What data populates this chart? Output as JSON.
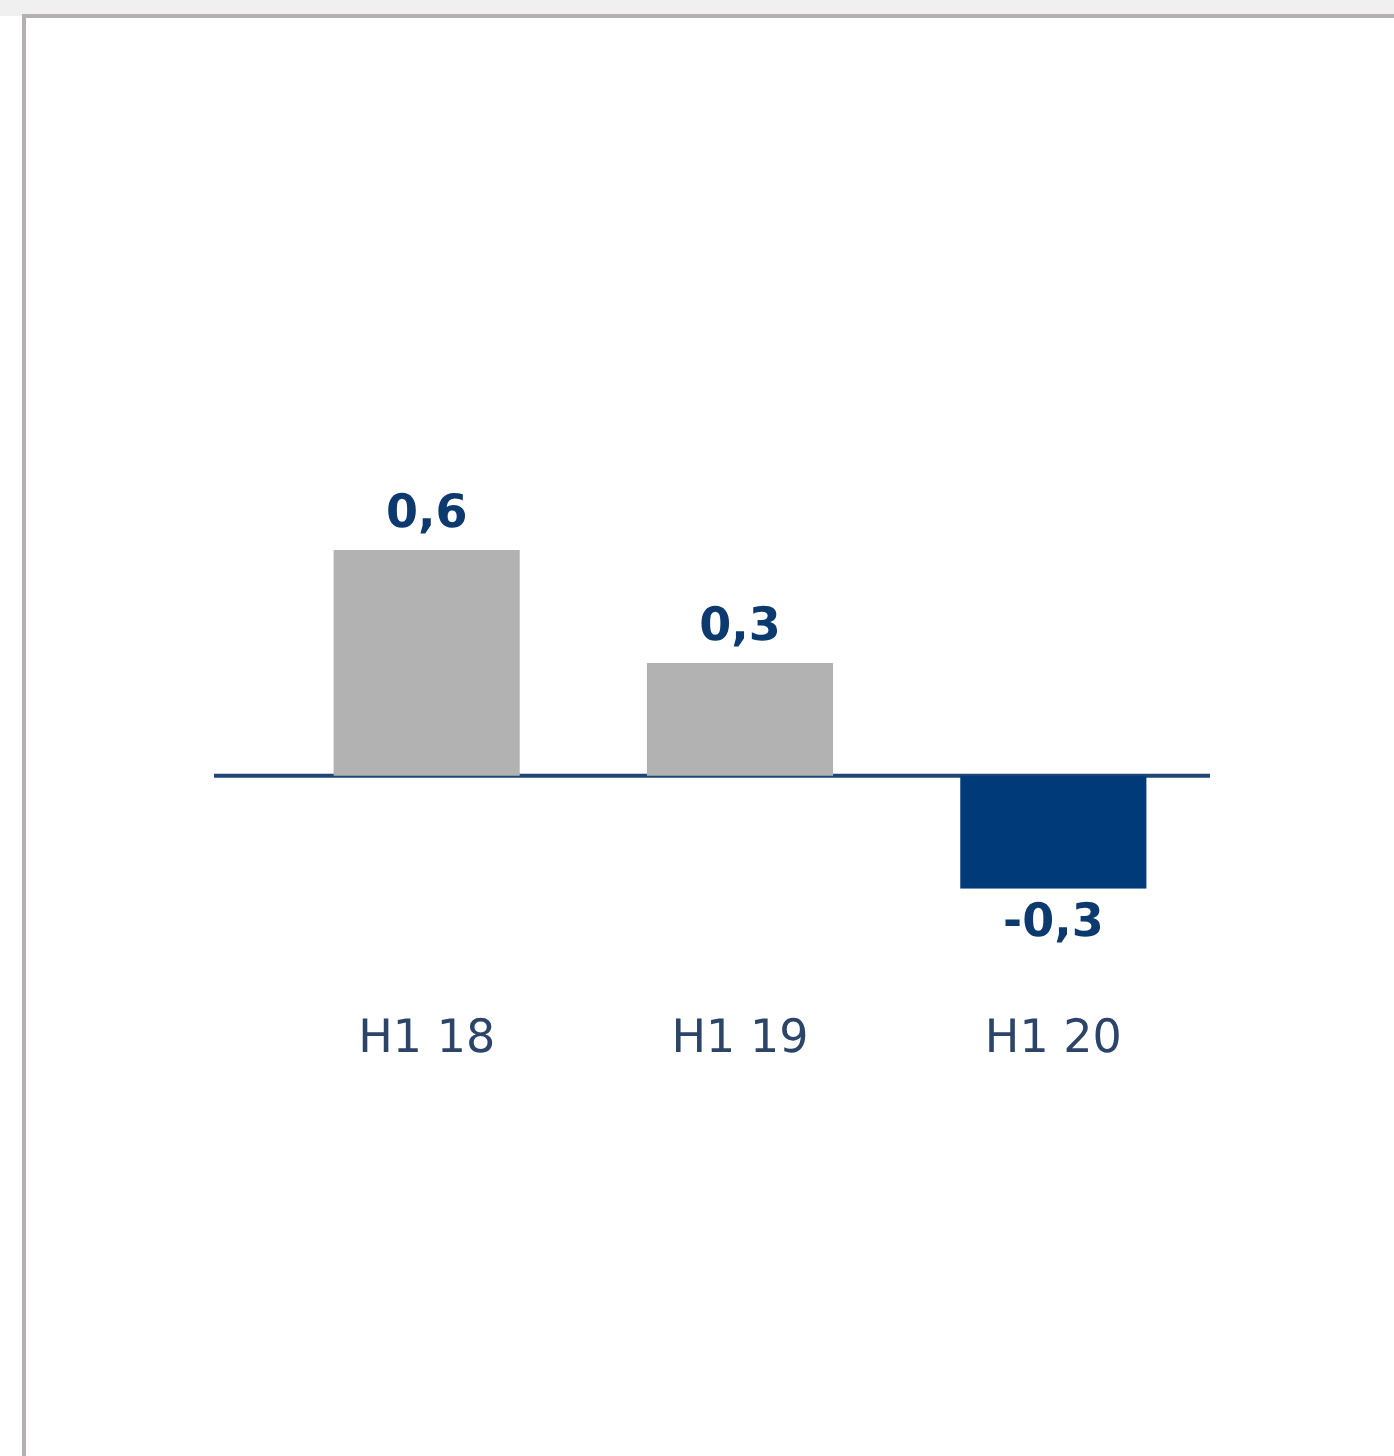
{
  "chart_data": {
    "type": "bar",
    "categories": [
      "H1 18",
      "H1 19",
      "H1 20"
    ],
    "values": [
      0.6,
      0.3,
      -0.3
    ],
    "colors": [
      "#b2b2b2",
      "#b2b2b2",
      "#003a78"
    ],
    "value_labels": [
      "0,6",
      "0,3",
      "-0,3"
    ],
    "ref_lines": [
      {
        "axis": "y",
        "value": 0,
        "color": "#1f4677"
      }
    ]
  }
}
